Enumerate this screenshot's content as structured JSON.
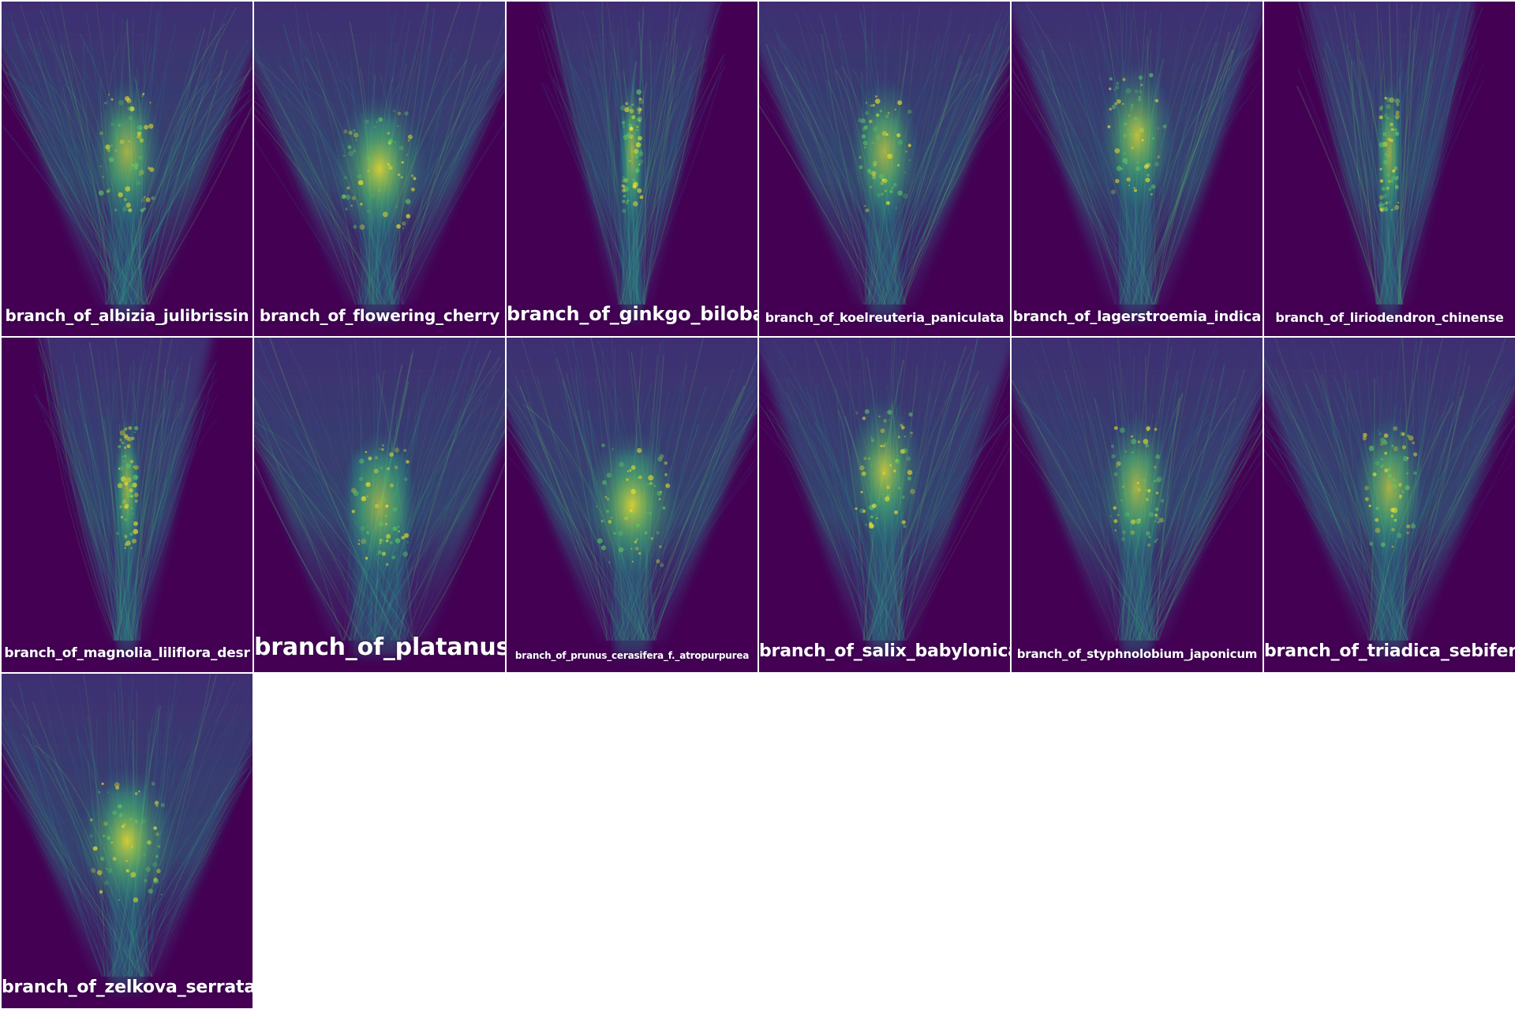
{
  "colormap": {
    "background": "#440154",
    "stops": [
      "#440154",
      "#3b528b",
      "#21918c",
      "#5ec962",
      "#fde725"
    ]
  },
  "tiles": [
    {
      "label": "branch_of_albizia_julibrissin",
      "shape": "spread",
      "seed": 11
    },
    {
      "label": "branch_of_flowering_cherry",
      "shape": "broad",
      "seed": 23
    },
    {
      "label": "branch_of_ginkgo_biloba",
      "shape": "narrow",
      "seed": 37
    },
    {
      "label": "branch_of_koelreuteria_paniculata",
      "shape": "spread",
      "seed": 41
    },
    {
      "label": "branch_of_lagerstroemia_indica",
      "shape": "vase",
      "seed": 53
    },
    {
      "label": "branch_of_liriodendron_chinense",
      "shape": "narrow",
      "seed": 67
    },
    {
      "label": "branch_of_magnolia_liliflora_desr",
      "shape": "narrow",
      "seed": 71
    },
    {
      "label": "branch_of_platanus",
      "shape": "wide",
      "seed": 83
    },
    {
      "label": "branch_of_prunus_cerasifera_f._atropurpurea",
      "shape": "broad",
      "seed": 97
    },
    {
      "label": "branch_of_salix_babylonica",
      "shape": "vase",
      "seed": 101
    },
    {
      "label": "branch_of_styphnolobium_japonicum",
      "shape": "spread",
      "seed": 113
    },
    {
      "label": "branch_of_triadica_sebifera",
      "shape": "spread",
      "seed": 127
    },
    {
      "label": "branch_of_zelkova_serrata",
      "shape": "broad",
      "seed": 139
    }
  ]
}
